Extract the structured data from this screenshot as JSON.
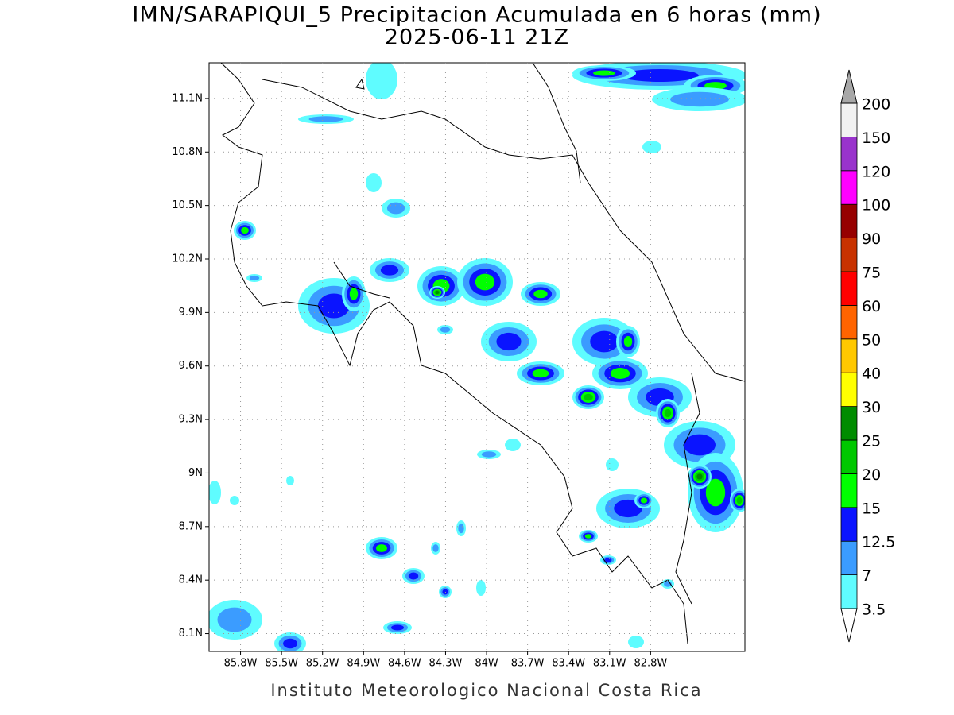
{
  "map": {
    "title": "IMN/SARAPIQUI_5 Precipitacion Acumulada en 6 horas (mm)",
    "subtitle": "2025-06-11 21Z",
    "credit": "Instituto Meteorologico Nacional Costa Rica",
    "xlim": [
      -86.03,
      -82.11
    ],
    "ylim": [
      8.0,
      11.3
    ],
    "xticks": [
      {
        "value": -85.8,
        "label": "85.8W"
      },
      {
        "value": -85.5,
        "label": "85.5W"
      },
      {
        "value": -85.2,
        "label": "85.2W"
      },
      {
        "value": -84.9,
        "label": "84.9W"
      },
      {
        "value": -84.6,
        "label": "84.6W"
      },
      {
        "value": -84.3,
        "label": "84.3W"
      },
      {
        "value": -84.0,
        "label": "84W"
      },
      {
        "value": -83.7,
        "label": "83.7W"
      },
      {
        "value": -83.4,
        "label": "83.4W"
      },
      {
        "value": -83.1,
        "label": "83.1W"
      },
      {
        "value": -82.8,
        "label": "82.8W"
      }
    ],
    "yticks": [
      {
        "value": 11.1,
        "label": "11.1N"
      },
      {
        "value": 10.8,
        "label": "10.8N"
      },
      {
        "value": 10.5,
        "label": "10.5N"
      },
      {
        "value": 10.2,
        "label": "10.2N"
      },
      {
        "value": 9.9,
        "label": "9.9N"
      },
      {
        "value": 9.6,
        "label": "9.6N"
      },
      {
        "value": 9.3,
        "label": "9.3N"
      },
      {
        "value": 9.0,
        "label": "9N"
      },
      {
        "value": 8.7,
        "label": "8.7N"
      },
      {
        "value": 8.4,
        "label": "8.4N"
      },
      {
        "value": 8.1,
        "label": "8.1N"
      }
    ],
    "grid": true,
    "colorbar": {
      "levels": [
        3.5,
        7,
        12.5,
        15,
        20,
        25,
        30,
        40,
        50,
        60,
        75,
        90,
        100,
        120,
        150,
        200
      ],
      "colors": [
        "#5ffcff",
        "#3b9cff",
        "#0a14ff",
        "#00ff00",
        "#00c800",
        "#008c00",
        "#ffff00",
        "#ffc800",
        "#ff6400",
        "#ff0000",
        "#c83200",
        "#960000",
        "#ff00ff",
        "#9933cc",
        "#f2f2f2"
      ],
      "under_color": "#ffffff",
      "over_color": "#a8a8a8"
    }
  }
}
